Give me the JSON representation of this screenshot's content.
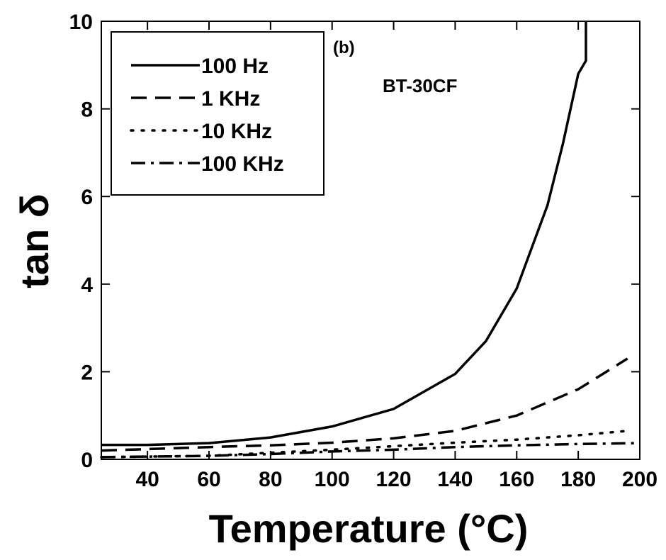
{
  "chart_data": {
    "type": "line",
    "xlabel": "Temperature (°C)",
    "ylabel": "tan δ",
    "annotations": [
      "(b)",
      "BT-30CF"
    ],
    "xlim": [
      25,
      200
    ],
    "xticks": [
      40,
      60,
      80,
      100,
      120,
      140,
      160,
      180,
      200
    ],
    "ylim": [
      0,
      10
    ],
    "yticks": [
      0,
      2,
      4,
      6,
      8,
      10
    ],
    "legend": "upper left",
    "series": [
      {
        "name": "100 Hz",
        "color": "#000000",
        "dash": "solid",
        "x": [
          25,
          40,
          60,
          80,
          100,
          120,
          140,
          150,
          160,
          170,
          175,
          180,
          182.5,
          182.5
        ],
        "values": [
          0.33,
          0.33,
          0.37,
          0.5,
          0.75,
          1.15,
          1.95,
          2.7,
          3.9,
          5.8,
          7.2,
          8.8,
          9.1,
          10
        ]
      },
      {
        "name": "1 KHz",
        "color": "#000000",
        "dash": "dashed",
        "x": [
          25,
          60,
          80,
          100,
          120,
          140,
          160,
          180,
          196
        ],
        "values": [
          0.2,
          0.28,
          0.32,
          0.38,
          0.48,
          0.65,
          1.0,
          1.6,
          2.3
        ]
      },
      {
        "name": "10 KHz",
        "color": "#000000",
        "dash": "dotted",
        "x": [
          25,
          60,
          80,
          100,
          120,
          140,
          160,
          180,
          196
        ],
        "values": [
          0.05,
          0.08,
          0.15,
          0.22,
          0.3,
          0.38,
          0.45,
          0.55,
          0.65
        ]
      },
      {
        "name": "100 KHz",
        "color": "#000000",
        "dash": "dashdot",
        "x": [
          25,
          60,
          80,
          100,
          120,
          140,
          160,
          180,
          200
        ],
        "values": [
          0.05,
          0.08,
          0.12,
          0.18,
          0.22,
          0.28,
          0.32,
          0.35,
          0.37
        ]
      }
    ]
  }
}
